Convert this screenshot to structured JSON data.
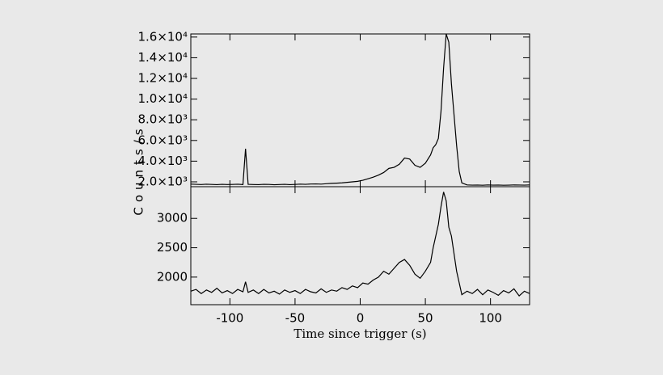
{
  "chart_data": [
    {
      "type": "line",
      "ylabel": "Counts/s",
      "x": [
        -130,
        -126,
        -122,
        -118,
        -114,
        -110,
        -106,
        -102,
        -98,
        -94,
        -90,
        -88,
        -86,
        -82,
        -78,
        -74,
        -70,
        -66,
        -62,
        -58,
        -54,
        -50,
        -46,
        -42,
        -38,
        -34,
        -30,
        -26,
        -22,
        -18,
        -14,
        -10,
        -6,
        -2,
        2,
        6,
        10,
        14,
        18,
        22,
        26,
        30,
        34,
        38,
        42,
        46,
        50,
        54,
        56,
        58,
        60,
        62,
        64,
        66,
        68,
        70,
        72,
        74,
        76,
        78,
        82,
        86,
        90,
        94,
        98,
        102,
        106,
        110,
        114,
        118,
        122,
        126,
        130
      ],
      "values": [
        1780,
        1760,
        1740,
        1770,
        1750,
        1730,
        1760,
        1740,
        1750,
        1770,
        1740,
        5200,
        1760,
        1740,
        1730,
        1760,
        1750,
        1720,
        1740,
        1760,
        1730,
        1750,
        1780,
        1760,
        1790,
        1800,
        1780,
        1820,
        1850,
        1870,
        1900,
        1950,
        2000,
        2050,
        2150,
        2300,
        2450,
        2650,
        2900,
        3300,
        3400,
        3700,
        4300,
        4200,
        3600,
        3400,
        3800,
        4600,
        5300,
        5600,
        6200,
        8800,
        13000,
        16300,
        15500,
        11500,
        8500,
        5500,
        3000,
        1900,
        1700,
        1680,
        1690,
        1670,
        1700,
        1680,
        1690,
        1670,
        1680,
        1700,
        1690,
        1680,
        1700
      ],
      "color": "#000000",
      "xlim": [
        -130,
        130
      ],
      "xticks": [
        -100,
        -50,
        0,
        50,
        100
      ],
      "ylim": [
        1530,
        16300
      ],
      "yticks": [
        {
          "value": 2000,
          "label": "2.0×10³"
        },
        {
          "value": 4000,
          "label": "4.0×10³"
        },
        {
          "value": 6000,
          "label": "6.0×10³"
        },
        {
          "value": 8000,
          "label": "8.0×10³"
        },
        {
          "value": 10000,
          "label": "1.0×10⁴"
        },
        {
          "value": 12000,
          "label": "1.2×10⁴"
        },
        {
          "value": 14000,
          "label": "1.4×10⁴"
        },
        {
          "value": 16000,
          "label": "1.6×10⁴"
        }
      ]
    },
    {
      "type": "line",
      "xlabel": "Time since trigger (s)",
      "x": [
        -130,
        -126,
        -122,
        -118,
        -114,
        -110,
        -106,
        -102,
        -98,
        -94,
        -90,
        -88,
        -86,
        -82,
        -78,
        -74,
        -70,
        -66,
        -62,
        -58,
        -54,
        -50,
        -46,
        -42,
        -38,
        -34,
        -30,
        -26,
        -22,
        -18,
        -14,
        -10,
        -6,
        -2,
        2,
        6,
        10,
        14,
        18,
        22,
        26,
        30,
        34,
        38,
        42,
        46,
        50,
        54,
        56,
        58,
        60,
        62,
        64,
        66,
        68,
        70,
        72,
        74,
        76,
        78,
        82,
        86,
        90,
        94,
        98,
        102,
        106,
        110,
        114,
        118,
        122,
        126,
        130
      ],
      "values": [
        1760,
        1790,
        1720,
        1780,
        1740,
        1810,
        1730,
        1770,
        1720,
        1790,
        1750,
        1920,
        1740,
        1780,
        1720,
        1790,
        1730,
        1760,
        1710,
        1780,
        1740,
        1770,
        1720,
        1790,
        1750,
        1730,
        1800,
        1740,
        1780,
        1760,
        1820,
        1790,
        1850,
        1820,
        1900,
        1880,
        1950,
        2000,
        2100,
        2050,
        2150,
        2250,
        2300,
        2200,
        2050,
        1980,
        2100,
        2250,
        2500,
        2700,
        2900,
        3200,
        3450,
        3300,
        2850,
        2700,
        2400,
        2100,
        1900,
        1700,
        1760,
        1720,
        1790,
        1700,
        1780,
        1740,
        1690,
        1770,
        1730,
        1800,
        1680,
        1760,
        1720
      ],
      "color": "#000000",
      "xlim": [
        -130,
        130
      ],
      "xticks": [
        -100,
        -50,
        0,
        50,
        100
      ],
      "ylim": [
        1530,
        3540
      ],
      "yticks": [
        2000,
        2500,
        3000
      ]
    }
  ]
}
